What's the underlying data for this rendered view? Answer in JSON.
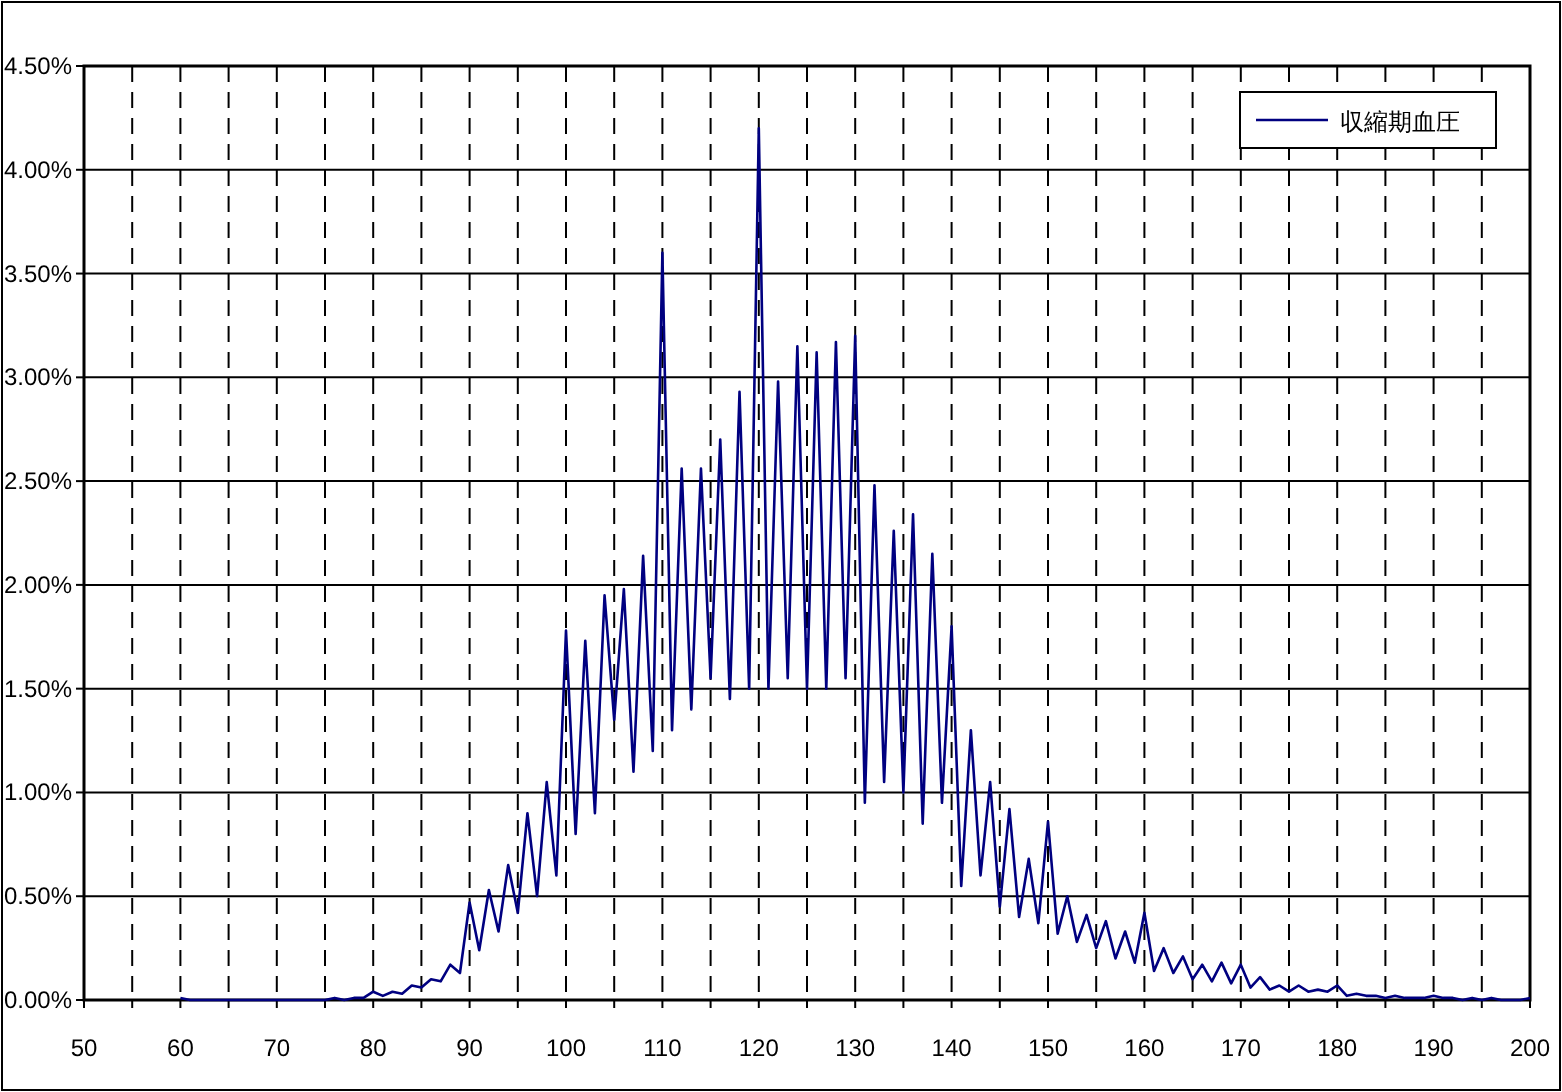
{
  "chart_data": {
    "type": "line",
    "x": [
      60,
      61,
      62,
      63,
      64,
      65,
      66,
      67,
      68,
      69,
      70,
      71,
      72,
      73,
      74,
      75,
      76,
      77,
      78,
      79,
      80,
      81,
      82,
      83,
      84,
      85,
      86,
      87,
      88,
      89,
      90,
      91,
      92,
      93,
      94,
      95,
      96,
      97,
      98,
      99,
      100,
      101,
      102,
      103,
      104,
      105,
      106,
      107,
      108,
      109,
      110,
      111,
      112,
      113,
      114,
      115,
      116,
      117,
      118,
      119,
      120,
      121,
      122,
      123,
      124,
      125,
      126,
      127,
      128,
      129,
      130,
      131,
      132,
      133,
      134,
      135,
      136,
      137,
      138,
      139,
      140,
      141,
      142,
      143,
      144,
      145,
      146,
      147,
      148,
      149,
      150,
      151,
      152,
      153,
      154,
      155,
      156,
      157,
      158,
      159,
      160,
      161,
      162,
      163,
      164,
      165,
      166,
      167,
      168,
      169,
      170,
      171,
      172,
      173,
      174,
      175,
      176,
      177,
      178,
      179,
      180,
      181,
      182,
      183,
      184,
      185,
      186,
      187,
      188,
      189,
      190,
      191,
      192,
      193,
      194,
      195,
      196,
      197,
      198,
      199,
      200
    ],
    "series": [
      {
        "name": "収縮期血圧",
        "color": "#000080",
        "values": [
          0.01,
          0,
          0,
          0,
          0,
          0,
          0,
          0,
          0,
          0,
          0,
          0,
          0,
          0,
          0,
          0,
          0.01,
          0,
          0.01,
          0.01,
          0.04,
          0.02,
          0.04,
          0.03,
          0.07,
          0.06,
          0.1,
          0.09,
          0.17,
          0.13,
          0.47,
          0.24,
          0.53,
          0.33,
          0.65,
          0.42,
          0.9,
          0.5,
          1.05,
          0.6,
          1.78,
          0.8,
          1.73,
          0.9,
          1.95,
          1.35,
          1.98,
          1.1,
          2.14,
          1.2,
          3.6,
          1.3,
          2.56,
          1.4,
          2.56,
          1.55,
          2.7,
          1.45,
          2.93,
          1.5,
          4.2,
          1.5,
          2.98,
          1.55,
          3.15,
          1.5,
          3.12,
          1.5,
          3.17,
          1.55,
          3.2,
          0.95,
          2.48,
          1.05,
          2.26,
          1.0,
          2.34,
          0.85,
          2.15,
          0.95,
          1.8,
          0.55,
          1.3,
          0.6,
          1.05,
          0.45,
          0.92,
          0.4,
          0.68,
          0.37,
          0.86,
          0.32,
          0.5,
          0.28,
          0.41,
          0.25,
          0.38,
          0.2,
          0.33,
          0.18,
          0.42,
          0.14,
          0.25,
          0.13,
          0.21,
          0.1,
          0.17,
          0.09,
          0.18,
          0.08,
          0.17,
          0.06,
          0.11,
          0.05,
          0.07,
          0.04,
          0.07,
          0.04,
          0.05,
          0.04,
          0.07,
          0.02,
          0.03,
          0.02,
          0.02,
          0.01,
          0.02,
          0.01,
          0.01,
          0.01,
          0.02,
          0.01,
          0.01,
          0,
          0.01,
          0,
          0.01,
          0,
          0,
          0,
          0.01
        ]
      }
    ],
    "xlim": [
      50,
      200
    ],
    "ylim": [
      0,
      4.5
    ],
    "xticks": [
      50,
      {
        "value": 55,
        "label": null
      },
      60,
      {
        "value": 65,
        "label": null
      },
      70,
      {
        "value": 75,
        "label": null
      },
      80,
      {
        "value": 85,
        "label": null
      },
      90,
      {
        "value": 95,
        "label": null
      },
      100,
      {
        "value": 105,
        "label": null
      },
      110,
      {
        "value": 115,
        "label": null
      },
      120,
      {
        "value": 125,
        "label": null
      },
      130,
      {
        "value": 135,
        "label": null
      },
      140,
      {
        "value": 145,
        "label": null
      },
      150,
      {
        "value": 155,
        "label": null
      },
      160,
      {
        "value": 165,
        "label": null
      },
      170,
      {
        "value": 175,
        "label": null
      },
      180,
      {
        "value": 185,
        "label": null
      },
      190,
      {
        "value": 195,
        "label": null
      },
      200
    ],
    "yticks": [
      {
        "value": 0,
        "label": "0.00%"
      },
      {
        "value": 0.5,
        "label": "0.50%"
      },
      {
        "value": 1,
        "label": "1.00%"
      },
      {
        "value": 1.5,
        "label": "1.50%"
      },
      {
        "value": 2,
        "label": "2.00%"
      },
      {
        "value": 2.5,
        "label": "2.50%"
      },
      {
        "value": 3,
        "label": "3.00%"
      },
      {
        "value": 3.5,
        "label": "3.50%"
      },
      {
        "value": 4,
        "label": "4.00%"
      },
      {
        "value": 4.5,
        "label": "4.50%"
      }
    ],
    "grid": true,
    "legend": "top right",
    "marker": "none",
    "line_style": "solid"
  }
}
